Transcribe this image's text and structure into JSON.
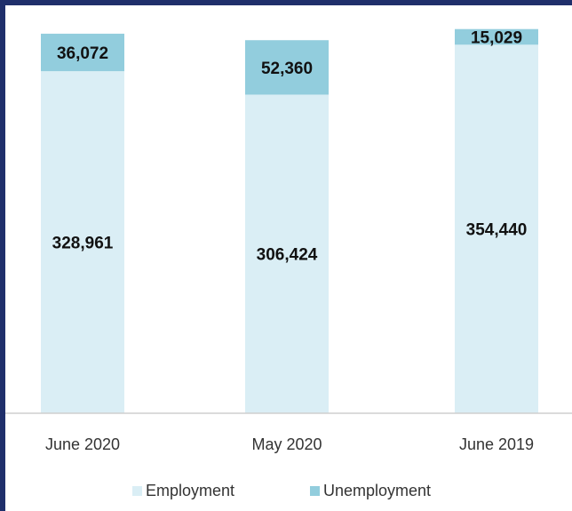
{
  "chart_data": {
    "type": "bar",
    "stacked": true,
    "categories": [
      "June 2020",
      "May  2020",
      "June 2019"
    ],
    "series": [
      {
        "name": "Employment",
        "values": [
          328961,
          306424,
          354440
        ],
        "labels": [
          "328,961",
          "306,424",
          "354,440"
        ],
        "color": "#daeef5"
      },
      {
        "name": "Unemployment",
        "values": [
          36072,
          52360,
          15029
        ],
        "labels": [
          "36,072",
          "52,360",
          "15,029"
        ],
        "color": "#92cddd"
      }
    ],
    "legend_position": "bottom",
    "grid": false
  }
}
